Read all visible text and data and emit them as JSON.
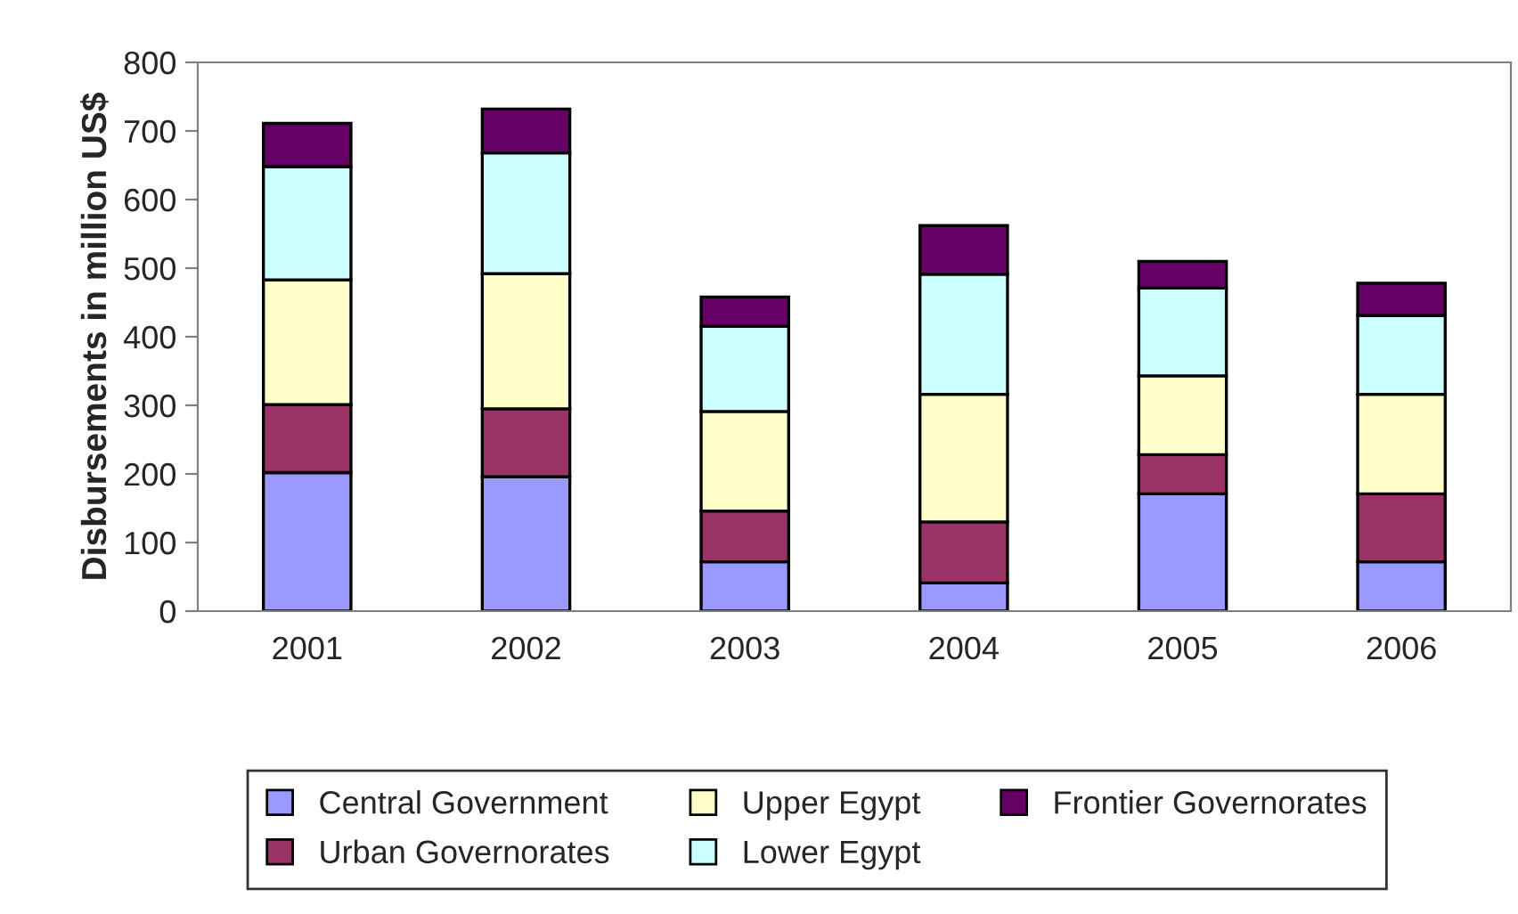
{
  "chart_data": {
    "type": "bar",
    "stacked": true,
    "ylabel": "Disbursements in million US$",
    "categories": [
      "2001",
      "2002",
      "2003",
      "2004",
      "2005",
      "2006"
    ],
    "series": [
      {
        "name": "Central Government",
        "color": "#9999ff",
        "values": [
          202,
          196,
          72,
          41,
          171,
          72
        ]
      },
      {
        "name": "Urban Governorates",
        "color": "#993366",
        "values": [
          99,
          99,
          74,
          89,
          57,
          99
        ]
      },
      {
        "name": "Upper Egypt",
        "color": "#ffffcc",
        "values": [
          182,
          197,
          145,
          186,
          115,
          145
        ]
      },
      {
        "name": "Lower Egypt",
        "color": "#ccffff",
        "values": [
          165,
          176,
          124,
          175,
          128,
          115
        ]
      },
      {
        "name": "Frontier Governorates",
        "color": "#660066",
        "values": [
          63,
          64,
          43,
          71,
          39,
          47
        ]
      }
    ],
    "ylim": [
      0,
      800
    ],
    "yticks": [
      0,
      100,
      200,
      300,
      400,
      500,
      600,
      700,
      800
    ],
    "grid": false,
    "legend": "bottom"
  }
}
